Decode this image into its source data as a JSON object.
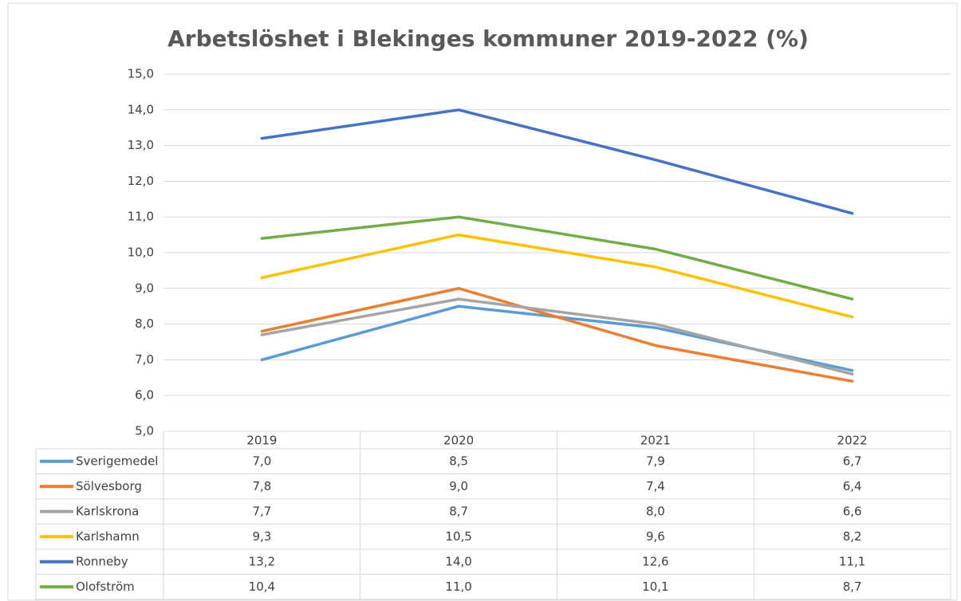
{
  "chart_data": {
    "type": "line",
    "title": "Arbetslöshet i Blekinges kommuner 2019-2022 (%)",
    "categories": [
      "2019",
      "2020",
      "2021",
      "2022"
    ],
    "series": [
      {
        "name": "Sverigemedel",
        "color": "#5b9bd5",
        "values": [
          7.0,
          8.5,
          7.9,
          6.7
        ],
        "value_labels": [
          "7,0",
          "8,5",
          "7,9",
          "6,7"
        ]
      },
      {
        "name": "Sölvesborg",
        "color": "#ed7d31",
        "values": [
          7.8,
          9.0,
          7.4,
          6.4
        ],
        "value_labels": [
          "7,8",
          "9,0",
          "7,4",
          "6,4"
        ]
      },
      {
        "name": "Karlskrona",
        "color": "#a5a5a5",
        "values": [
          7.7,
          8.7,
          8.0,
          6.6
        ],
        "value_labels": [
          "7,7",
          "8,7",
          "8,0",
          "6,6"
        ]
      },
      {
        "name": "Karlshamn",
        "color": "#ffc000",
        "values": [
          9.3,
          10.5,
          9.6,
          8.2
        ],
        "value_labels": [
          "9,3",
          "10,5",
          "9,6",
          "8,2"
        ]
      },
      {
        "name": "Ronneby",
        "color": "#4472c4",
        "values": [
          13.2,
          14.0,
          12.6,
          11.1
        ],
        "value_labels": [
          "13,2",
          "14,0",
          "12,6",
          "11,1"
        ]
      },
      {
        "name": "Olofström",
        "color": "#70ad47",
        "values": [
          10.4,
          11.0,
          10.1,
          8.7
        ],
        "value_labels": [
          "10,4",
          "11,0",
          "10,1",
          "8,7"
        ]
      }
    ],
    "ylim": [
      5,
      15
    ],
    "yticks": [
      {
        "value": 5,
        "label": "5,0"
      },
      {
        "value": 6,
        "label": "6,0"
      },
      {
        "value": 7,
        "label": "7,0"
      },
      {
        "value": 8,
        "label": "8,0"
      },
      {
        "value": 9,
        "label": "9,0"
      },
      {
        "value": 10,
        "label": "10,0"
      },
      {
        "value": 11,
        "label": "11,0"
      },
      {
        "value": 12,
        "label": "12,0"
      },
      {
        "value": 13,
        "label": "13,0"
      },
      {
        "value": 14,
        "label": "14,0"
      },
      {
        "value": 15,
        "label": "15,0"
      }
    ],
    "grid": true
  }
}
